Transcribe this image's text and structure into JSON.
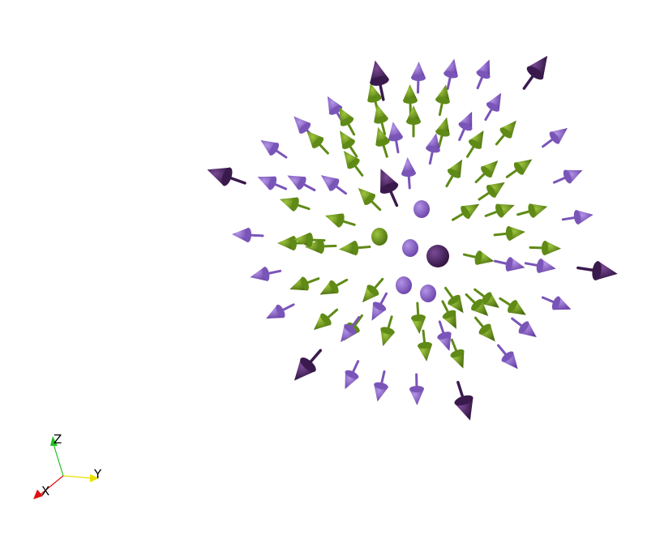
{
  "scene": {
    "background": "#ffffff",
    "field": {
      "description_visible": false,
      "colors": {
        "outer_purple": "#8c63c9",
        "dark_purple": "#4a2560",
        "green": "#6f9a1c",
        "green_dark": "#4d7010"
      }
    },
    "axes_triad": {
      "labels": {
        "x": "X",
        "y": "Y",
        "z": "Z"
      },
      "colors": {
        "x": "#e01010",
        "y": "#e8e000",
        "z": "#20c020"
      }
    }
  }
}
